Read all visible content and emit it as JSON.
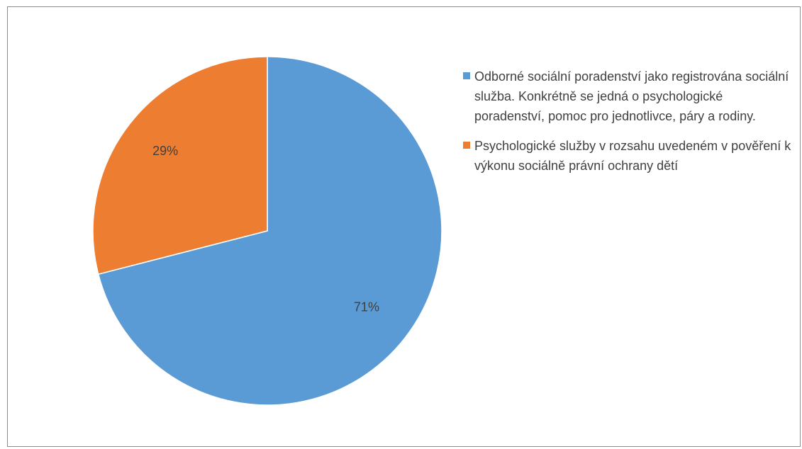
{
  "chart_data": {
    "type": "pie",
    "categories": [
      "Odborné sociální poradenství jako registrována sociální služba. Konkrétně se jedná o psychologické poradenství, pomoc pro jednotlivce, páry a rodiny.",
      "Psychologické služby v rozsahu uvedeném v pověření k výkonu sociálně právní ochrany dětí"
    ],
    "values": [
      71,
      29
    ],
    "data_labels": [
      "71%",
      "29%"
    ],
    "colors": [
      "#5b9bd5",
      "#ed7d31"
    ],
    "legend_position": "right"
  }
}
